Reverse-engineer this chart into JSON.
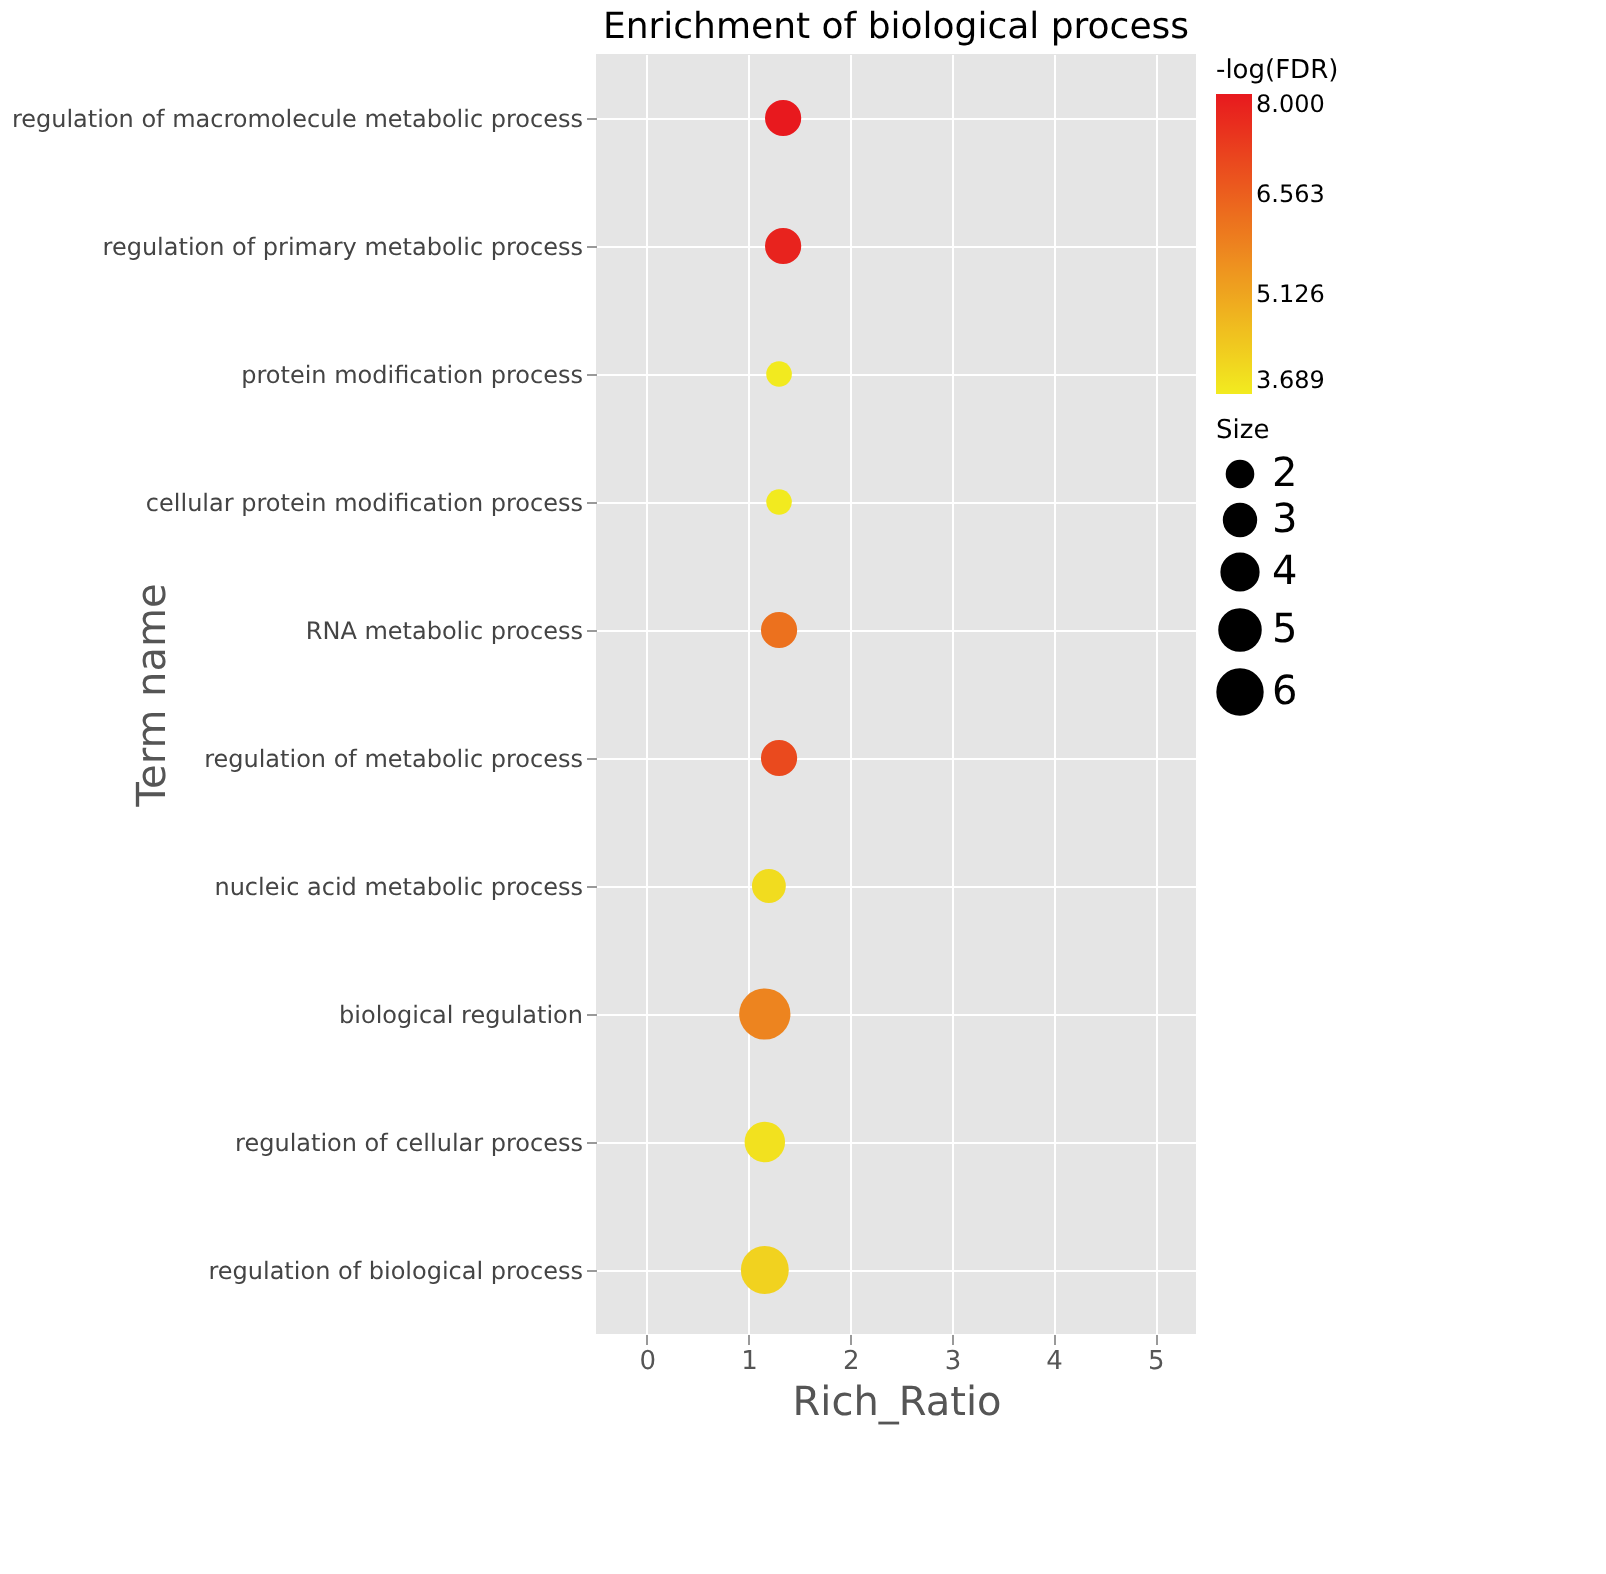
{
  "chart_data": {
    "type": "bubble",
    "title": "Enrichment of biological process",
    "xlabel": "Rich_Ratio",
    "ylabel": "Term name",
    "legend_title": "Size",
    "clabel": "-log(FDR)",
    "categories": [
      "regulation of macromolecule metabolic process",
      "regulation of primary metabolic process",
      "protein modification process",
      "cellular protein modification process",
      "RNA metabolic process",
      "regulation of metabolic process",
      "nucleic acid metabolic process",
      "biological regulation",
      "regulation of cellular process",
      "regulation of biological process"
    ],
    "values": [
      1.34,
      1.34,
      1.3,
      1.3,
      1.3,
      1.3,
      1.2,
      1.16,
      1.16,
      1.16
    ],
    "sizes": [
      4,
      4,
      2,
      2,
      4,
      4,
      3.5,
      8,
      5,
      7
    ],
    "cvalues": [
      8.0,
      7.8,
      3.7,
      3.7,
      6.2,
      7.0,
      4.0,
      5.8,
      3.9,
      4.2
    ],
    "size_legend": [
      2,
      3,
      4,
      5,
      6
    ],
    "clim": [
      3.689,
      8.0
    ],
    "cticks": [
      {
        "value": 3.689,
        "label": "3.689"
      },
      {
        "value": 5.126,
        "label": "5.126"
      },
      {
        "value": 6.563,
        "label": "6.563"
      },
      {
        "value": 8.0,
        "label": "8.000"
      }
    ],
    "colors": [
      "#e8191e",
      "#e9231e",
      "#f2eb1f",
      "#f2eb1f",
      "#ec711e",
      "#ea4a1e",
      "#f1dd1f",
      "#ed851e",
      "#f2e21f",
      "#f1d31f"
    ],
    "orientation": "horizontal",
    "xlim": [
      -0.5,
      5.4
    ],
    "xticks": [
      0,
      1,
      2,
      3,
      4,
      5
    ],
    "grid": true
  }
}
